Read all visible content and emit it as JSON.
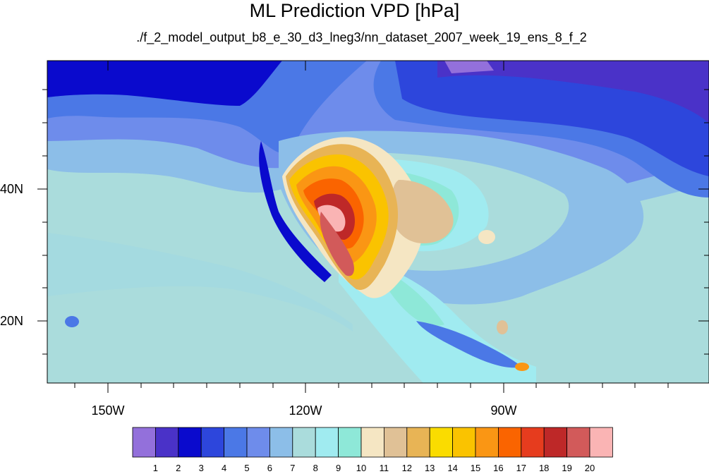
{
  "title": "ML Prediction VPD [hPa]",
  "subtitle": "./f_2_model_output_b8_e_30_d3_lneg3/nn_dataset_2007_week_19_ens_8_f_2",
  "lat_labels": [
    "40N",
    "20N"
  ],
  "lon_labels": [
    "150W",
    "120W",
    "90W"
  ],
  "colorbar": {
    "colors": [
      "#9370db",
      "#4a32c8",
      "#0a0acd",
      "#2d46dc",
      "#4b78e6",
      "#6e8ceb",
      "#8cbee8",
      "#aadcdc",
      "#a0ebf0",
      "#8ee8d8",
      "#f5e6c3",
      "#e0c196",
      "#e8b455",
      "#fadc00",
      "#fac300",
      "#fa9614",
      "#fa6400",
      "#e63c1e",
      "#be2828",
      "#d25a5a",
      "#fab4b4"
    ],
    "labels": [
      "1",
      "2",
      "3",
      "4",
      "5",
      "6",
      "7",
      "8",
      "9",
      "10",
      "11",
      "12",
      "13",
      "14",
      "15",
      "16",
      "17",
      "18",
      "19",
      "20"
    ]
  }
}
